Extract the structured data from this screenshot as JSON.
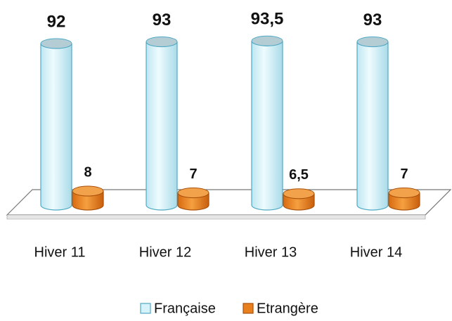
{
  "chart_data": {
    "type": "bar3d",
    "categories": [
      "Hiver 11",
      "Hiver 12",
      "Hiver 13",
      "Hiver 14"
    ],
    "series": [
      {
        "name": "Française",
        "color": "#d6f3fb",
        "values": [
          92,
          93,
          93.5,
          93
        ],
        "value_labels": [
          "92",
          "93",
          "93,5",
          "93"
        ]
      },
      {
        "name": "Etrangère",
        "color": "#e8801e",
        "values": [
          8,
          7,
          6.5,
          7
        ],
        "value_labels": [
          "8",
          "7",
          "6,5",
          "7"
        ]
      }
    ],
    "legend": "bottom"
  }
}
